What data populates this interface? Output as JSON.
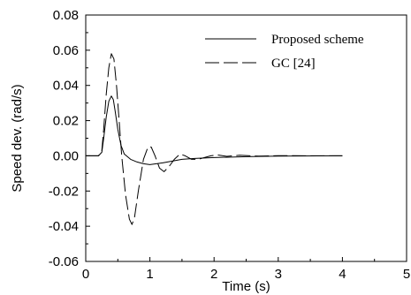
{
  "chart_data": {
    "type": "line",
    "xlabel": "Time (s)",
    "ylabel": "Speed dev. (rad/s)",
    "xlim": [
      0,
      5
    ],
    "ylim": [
      -0.06,
      0.08
    ],
    "xticks": [
      "0",
      "1",
      "2",
      "3",
      "4",
      "5"
    ],
    "yticks": [
      "-0.06",
      "-0.04",
      "-0.02",
      "0.00",
      "0.02",
      "0.04",
      "0.06",
      "0.08"
    ],
    "grid": false,
    "legend_position": "top-right",
    "series": [
      {
        "name": "Proposed scheme",
        "style": "solid",
        "x": [
          0,
          0.2,
          0.25,
          0.28,
          0.32,
          0.36,
          0.4,
          0.43,
          0.46,
          0.5,
          0.55,
          0.6,
          0.7,
          0.8,
          0.9,
          1.0,
          1.1,
          1.2,
          1.35,
          1.5,
          1.7,
          2.0,
          2.5,
          3.0,
          4.0
        ],
        "y": [
          0,
          0,
          0.002,
          0.01,
          0.022,
          0.031,
          0.034,
          0.032,
          0.025,
          0.015,
          0.006,
          0.001,
          -0.002,
          -0.0035,
          -0.0045,
          -0.005,
          -0.0045,
          -0.004,
          -0.003,
          -0.002,
          -0.0015,
          -0.001,
          -0.0005,
          -0.0002,
          0
        ]
      },
      {
        "name": "GC [24]",
        "style": "dashed",
        "x": [
          0,
          0.2,
          0.25,
          0.28,
          0.32,
          0.36,
          0.4,
          0.44,
          0.48,
          0.52,
          0.56,
          0.62,
          0.68,
          0.72,
          0.76,
          0.82,
          0.9,
          0.97,
          1.02,
          1.08,
          1.15,
          1.22,
          1.3,
          1.38,
          1.47,
          1.55,
          1.65,
          1.75,
          1.85,
          1.95,
          2.05,
          2.2,
          2.4,
          2.7,
          3.0,
          3.5,
          4.0
        ],
        "y": [
          0,
          0,
          0.003,
          0.015,
          0.035,
          0.05,
          0.058,
          0.055,
          0.04,
          0.02,
          0.0,
          -0.022,
          -0.036,
          -0.039,
          -0.035,
          -0.02,
          -0.002,
          0.005,
          0.005,
          0.0,
          -0.007,
          -0.009,
          -0.006,
          -0.002,
          0.001,
          0.0,
          -0.002,
          -0.002,
          -0.001,
          0.0,
          0.0005,
          -0.0003,
          0.0003,
          -0.0002,
          0.0001,
          0,
          0
        ]
      }
    ]
  }
}
